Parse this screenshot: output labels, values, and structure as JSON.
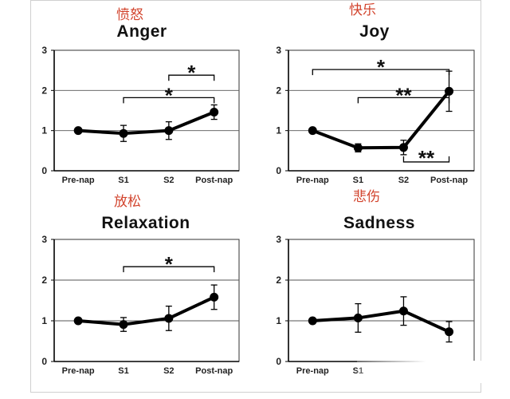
{
  "figure": {
    "accent_color": "#d2432c",
    "line_color": "#000000"
  },
  "chart_data": [
    {
      "type": "line",
      "title": "Anger",
      "title_cn": "愤怒",
      "categories": [
        "Pre-nap",
        "S1",
        "S2",
        "Post-nap"
      ],
      "values": [
        1.0,
        0.93,
        1.0,
        1.46
      ],
      "errors": [
        0.0,
        0.2,
        0.22,
        0.18
      ],
      "ylim": [
        0,
        3
      ],
      "yticks": [
        0,
        1,
        2,
        3
      ],
      "gridlines": [
        1,
        2
      ],
      "significance": [
        {
          "from": 1,
          "to": 3,
          "y": 1.82,
          "label": "*"
        },
        {
          "from": 2,
          "to": 3,
          "y": 2.38,
          "label": "*"
        }
      ]
    },
    {
      "type": "line",
      "title": "Joy",
      "title_cn": "快乐",
      "categories": [
        "Pre-nap",
        "S1",
        "S2",
        "Post-nap"
      ],
      "values": [
        1.0,
        0.57,
        0.58,
        1.98
      ],
      "errors": [
        0.0,
        0.1,
        0.18,
        0.5
      ],
      "ylim": [
        0,
        3
      ],
      "yticks": [
        0,
        1,
        2,
        3
      ],
      "gridlines": [
        1,
        2
      ],
      "significance": [
        {
          "from": 0,
          "to": 3,
          "y": 2.52,
          "label": "*"
        },
        {
          "from": 1,
          "to": 3,
          "y": 1.82,
          "label": "**"
        },
        {
          "from": 2,
          "to": 3,
          "y": 0.22,
          "label": "**",
          "below": true
        }
      ]
    },
    {
      "type": "line",
      "title": "Relaxation",
      "title_cn": "放松",
      "categories": [
        "Pre-nap",
        "S1",
        "S2",
        "Post-nap"
      ],
      "values": [
        1.0,
        0.91,
        1.06,
        1.58
      ],
      "errors": [
        0.0,
        0.17,
        0.3,
        0.3
      ],
      "ylim": [
        0,
        3
      ],
      "yticks": [
        0,
        1,
        2,
        3
      ],
      "gridlines": [
        1,
        2
      ],
      "significance": [
        {
          "from": 1,
          "to": 3,
          "y": 2.33,
          "label": "*"
        }
      ]
    },
    {
      "type": "line",
      "title": "Sadness",
      "title_cn": "悲伤",
      "categories": [
        "Pre-nap",
        "S1",
        "",
        ""
      ],
      "values": [
        1.0,
        1.07,
        1.24,
        0.73
      ],
      "errors": [
        0.0,
        0.35,
        0.35,
        0.25
      ],
      "ylim": [
        0,
        3
      ],
      "yticks": [
        0,
        1,
        2,
        3
      ],
      "gridlines": [
        1,
        2
      ],
      "significance": []
    }
  ]
}
